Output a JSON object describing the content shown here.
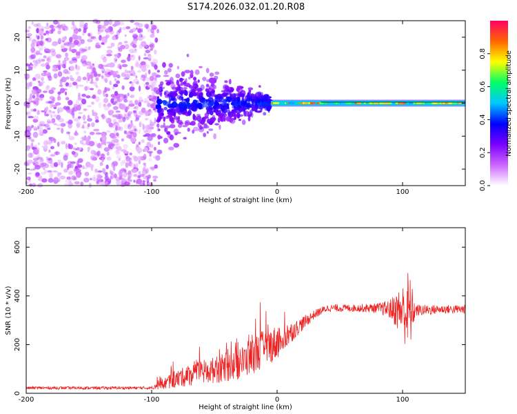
{
  "title": "S174.2026.032.01.20.R08",
  "chart_data": [
    {
      "type": "heatmap",
      "name": "spectrogram",
      "xlabel": "Height of straight line (km)",
      "ylabel": "Frequency (Hz)",
      "xlim": [
        -200,
        150
      ],
      "ylim": [
        -25,
        25
      ],
      "xticks": [
        -200,
        -100,
        0,
        100
      ],
      "yticks": [
        -20,
        -10,
        0,
        10,
        20
      ],
      "colorbar": {
        "label": "Normalized spectral amplitude",
        "range": [
          0.0,
          1.0
        ],
        "ticks": [
          0.0,
          0.2,
          0.4,
          0.6,
          0.8
        ],
        "colors": [
          "#ffffff",
          "#cc66ff",
          "#7a00ff",
          "#0000ff",
          "#00c8ff",
          "#00ff66",
          "#ffff00",
          "#ff6600",
          "#ff0066"
        ]
      },
      "regions": [
        {
          "x": [
            -200,
            -95
          ],
          "description": "scattered noise over full frequency band",
          "level": 0.1
        },
        {
          "x": [
            -95,
            -5
          ],
          "description": "diffuse signal near 0 Hz spreading to ±15 Hz",
          "level": 0.2
        },
        {
          "x": [
            -5,
            150
          ],
          "description": "narrow line near 0 Hz",
          "level": 0.6
        }
      ]
    },
    {
      "type": "line",
      "name": "snr",
      "xlabel": "Height of straight line (km)",
      "ylabel": "SNR (10 * v/v)",
      "xlim": [
        -200,
        150
      ],
      "ylim": [
        0,
        680
      ],
      "xticks": [
        -200,
        -100,
        0,
        100
      ],
      "yticks": [
        0,
        200,
        400,
        600
      ],
      "color": "#ee2222",
      "profile": {
        "x": [
          -200,
          -100,
          -90,
          -70,
          -50,
          -30,
          -15,
          0,
          15,
          30,
          40,
          60,
          80,
          90,
          100,
          105,
          110,
          130,
          150
        ],
        "y": [
          22,
          22,
          40,
          75,
          95,
          120,
          170,
          210,
          265,
          325,
          350,
          350,
          350,
          345,
          340,
          330,
          340,
          345,
          345
        ],
        "noise": [
          6,
          6,
          25,
          45,
          55,
          65,
          80,
          70,
          35,
          18,
          15,
          15,
          20,
          40,
          110,
          190,
          25,
          18,
          18
        ]
      }
    }
  ]
}
